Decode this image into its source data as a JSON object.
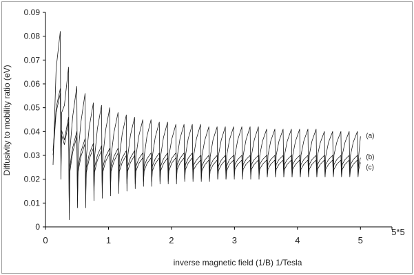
{
  "chart_data": {
    "type": "line",
    "xlabel": "inverse magnetic field (1/B) 1/Tesla",
    "ylabel": "Diffusivity to mobility ratio (eV)",
    "xlim": [
      0,
      5.5
    ],
    "ylim": [
      0,
      0.09
    ],
    "x_ticks": [
      "0",
      "1",
      "2",
      "3",
      "4",
      "5"
    ],
    "x_tick_values": [
      0,
      1,
      2,
      3,
      4,
      5
    ],
    "x_axis_end_label": "5*5",
    "y_ticks": [
      "0",
      "0.01",
      "0.02",
      "0.03",
      "0.04",
      "0.05",
      "0.06",
      "0.07",
      "0.08",
      "0.09"
    ],
    "y_tick_values": [
      0,
      0.01,
      0.02,
      0.03,
      0.04,
      0.05,
      0.06,
      0.07,
      0.08,
      0.09
    ],
    "grid": false,
    "series": [
      {
        "name": "(a)",
        "peaks": [
          0.082,
          0.067,
          0.059,
          0.056,
          0.052,
          0.051,
          0.05,
          0.048,
          0.047,
          0.046,
          0.045,
          0.045,
          0.044,
          0.044,
          0.043,
          0.043,
          0.043,
          0.043,
          0.042,
          0.042,
          0.042,
          0.042,
          0.042,
          0.042,
          0.042,
          0.041,
          0.041,
          0.041,
          0.041,
          0.041,
          0.041,
          0.041,
          0.04,
          0.04,
          0.04,
          0.04,
          0.04
        ],
        "troughs": [
          0.02,
          0.003,
          0.008,
          0.008,
          0.011,
          0.012,
          0.013,
          0.014,
          0.015,
          0.016,
          0.017,
          0.017,
          0.018,
          0.018,
          0.018,
          0.019,
          0.019,
          0.019,
          0.019,
          0.02,
          0.02,
          0.02,
          0.02,
          0.02,
          0.02,
          0.021,
          0.021,
          0.021,
          0.021,
          0.021,
          0.021,
          0.021,
          0.021,
          0.022,
          0.022,
          0.022,
          0.022
        ],
        "end_value": 0.038
      },
      {
        "name": "(b)",
        "peaks": [
          0.058,
          0.046,
          0.04,
          0.037,
          0.035,
          0.034,
          0.033,
          0.033,
          0.032,
          0.032,
          0.031,
          0.031,
          0.031,
          0.031,
          0.031,
          0.031,
          0.031,
          0.03,
          0.03,
          0.03,
          0.03,
          0.03,
          0.03,
          0.03,
          0.03,
          0.03,
          0.03,
          0.03,
          0.03,
          0.03,
          0.03,
          0.03,
          0.03,
          0.03,
          0.03,
          0.03,
          0.03
        ],
        "troughs": [
          0.026,
          0.008,
          0.013,
          0.015,
          0.017,
          0.018,
          0.019,
          0.019,
          0.02,
          0.02,
          0.021,
          0.021,
          0.021,
          0.021,
          0.022,
          0.022,
          0.022,
          0.022,
          0.022,
          0.022,
          0.022,
          0.023,
          0.023,
          0.023,
          0.023,
          0.023,
          0.023,
          0.023,
          0.023,
          0.023,
          0.023,
          0.023,
          0.023,
          0.023,
          0.023,
          0.023,
          0.023
        ],
        "end_value": 0.029
      },
      {
        "name": "(c)",
        "peaks": [
          0.056,
          0.044,
          0.038,
          0.035,
          0.033,
          0.032,
          0.031,
          0.031,
          0.03,
          0.03,
          0.029,
          0.029,
          0.029,
          0.029,
          0.029,
          0.029,
          0.029,
          0.028,
          0.028,
          0.028,
          0.028,
          0.028,
          0.028,
          0.028,
          0.028,
          0.028,
          0.028,
          0.028,
          0.028,
          0.028,
          0.028,
          0.028,
          0.028,
          0.028,
          0.028,
          0.028,
          0.028
        ],
        "troughs": [
          0.024,
          0.006,
          0.011,
          0.013,
          0.015,
          0.016,
          0.017,
          0.017,
          0.018,
          0.018,
          0.019,
          0.019,
          0.019,
          0.019,
          0.02,
          0.02,
          0.02,
          0.02,
          0.02,
          0.02,
          0.02,
          0.021,
          0.021,
          0.021,
          0.021,
          0.021,
          0.021,
          0.021,
          0.021,
          0.021,
          0.021,
          0.021,
          0.021,
          0.021,
          0.021,
          0.021,
          0.021
        ],
        "end_value": 0.027
      }
    ],
    "x_start": 0.12,
    "x_end": 5.0,
    "oscillation_period": 0.131,
    "colors": {
      "line": "#1a1a1a",
      "axis": "#000000",
      "frame": "#9a9a9a"
    }
  }
}
